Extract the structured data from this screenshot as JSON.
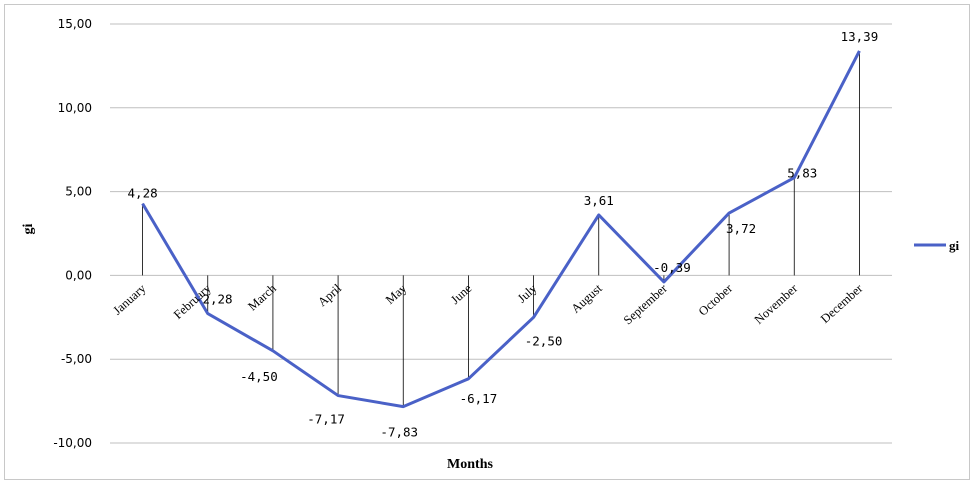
{
  "chart_data": {
    "type": "line",
    "categories": [
      "January",
      "February",
      "March",
      "April",
      "May",
      "June",
      "July",
      "August",
      "September",
      "October",
      "November",
      "December"
    ],
    "series": [
      {
        "name": "gi",
        "values": [
          4.28,
          -2.28,
          -4.5,
          -7.17,
          -7.83,
          -6.17,
          -2.5,
          3.61,
          -0.39,
          3.72,
          5.83,
          13.39
        ],
        "color": "#4a61c7"
      }
    ],
    "data_labels": [
      "4,28",
      "-2,28",
      "-4,50",
      "-7,17",
      "-7,83",
      "-6,17",
      "-2,50",
      "3,61",
      "-0,39",
      "3,72",
      "5,83",
      "13,39"
    ],
    "y_ticks": [
      15,
      10,
      5,
      0,
      -5,
      -10
    ],
    "y_tick_labels": [
      "15,00",
      "10,00",
      "5,00",
      "0,00",
      "-5,00",
      "-10,00"
    ],
    "ylim": [
      -10,
      15
    ],
    "xlabel": "Months",
    "ylabel": "gi",
    "legend": {
      "position": "right",
      "label": "gi"
    },
    "grid": true,
    "drop_lines": true
  }
}
